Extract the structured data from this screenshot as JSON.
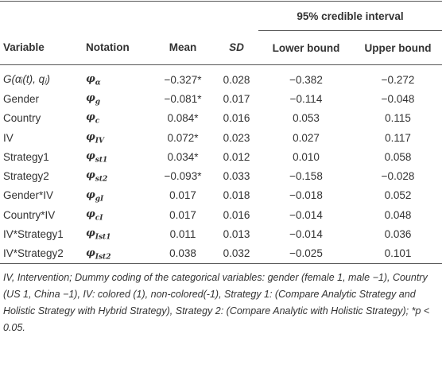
{
  "table": {
    "group_header": "95% credible interval",
    "columns": [
      "Variable",
      "Notation",
      "Mean",
      "SD",
      "Lower bound",
      "Upper bound"
    ],
    "rows": [
      [
        "G(αᵢ(t), qⱼ)",
        {
          "base": "φ",
          "sub": "α"
        },
        "−0.327*",
        "0.028",
        "−0.382",
        "−0.272"
      ],
      [
        "Gender",
        {
          "base": "φ",
          "sub": "g"
        },
        "−0.081*",
        "0.017",
        "−0.114",
        "−0.048"
      ],
      [
        "Country",
        {
          "base": "φ",
          "sub": "c"
        },
        "0.084*",
        "0.016",
        "0.053",
        "0.115"
      ],
      [
        "IV",
        {
          "base": "φ",
          "sub": "IV"
        },
        "0.072*",
        "0.023",
        "0.027",
        "0.117"
      ],
      [
        "Strategy1",
        {
          "base": "φ",
          "sub": "st1"
        },
        "0.034*",
        "0.012",
        "0.010",
        "0.058"
      ],
      [
        "Strategy2",
        {
          "base": "φ",
          "sub": "st2"
        },
        "−0.093*",
        "0.033",
        "−0.158",
        "−0.028"
      ],
      [
        "Gender*IV",
        {
          "base": "φ",
          "sub": "gI"
        },
        "0.017",
        "0.018",
        "−0.018",
        "0.052"
      ],
      [
        "Country*IV",
        {
          "base": "φ",
          "sub": "cI"
        },
        "0.017",
        "0.016",
        "−0.014",
        "0.048"
      ],
      [
        "IV*Strategy1",
        {
          "base": "φ",
          "sub": "Ist1"
        },
        "0.011",
        "0.013",
        "−0.014",
        "0.036"
      ],
      [
        "IV*Strategy2",
        {
          "base": "φ",
          "sub": "Ist2"
        },
        "0.038",
        "0.032",
        "−0.025",
        "0.101"
      ]
    ],
    "footnote": "IV, Intervention; Dummy coding of the categorical variables: gender (female 1, male −1), Country (US 1, China −1), IV: colored (1), non-colored(-1), Strategy 1: (Compare Analytic Strategy and Holistic Strategy with Hybrid Strategy), Strategy 2: (Compare Analytic with Holistic Strategy); *p < 0.05."
  }
}
